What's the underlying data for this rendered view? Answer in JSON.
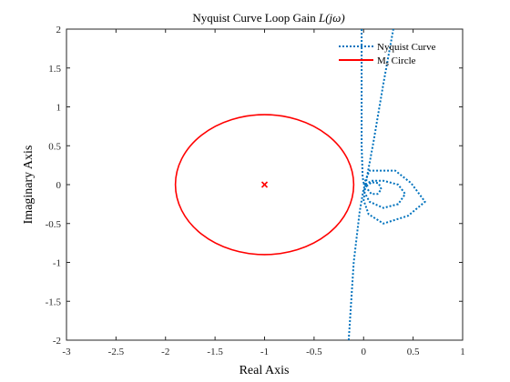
{
  "chart_data": {
    "type": "line",
    "title": "Nyquist Curve Loop Gain L(jω)",
    "title_parts": {
      "prefix": "Nyquist Curve Loop Gain ",
      "math": "L(jω)"
    },
    "xlabel": "Real Axis",
    "ylabel": "Imaginary Axis",
    "xlim": [
      -3,
      1
    ],
    "ylim": [
      -2,
      2
    ],
    "xticks": [
      -3,
      -2.5,
      -2,
      -1.5,
      -1,
      -0.5,
      0,
      0.5,
      1
    ],
    "xtick_labels": [
      "-3",
      "-2.5",
      "-2",
      "-1.5",
      "-1",
      "-0.5",
      "0",
      "0.5",
      "1"
    ],
    "yticks": [
      -2,
      -1.5,
      -1,
      -0.5,
      0,
      0.5,
      1,
      1.5,
      2
    ],
    "ytick_labels": [
      "-2",
      "-1.5",
      "-1",
      "-0.5",
      "0",
      "0.5",
      "1",
      "1.5",
      "2"
    ],
    "grid": false,
    "legend": {
      "placement": "top-right",
      "entries": [
        {
          "text": "Nyquist Curve",
          "color": "#0072BD",
          "style": "dotted"
        },
        {
          "text": "Ms Circle",
          "math_prefix": "M",
          "math_sub": "s",
          "rest": " Circle",
          "color": "#FF0000",
          "style": "solid"
        }
      ]
    },
    "marker": {
      "symbol": "x",
      "x": -1,
      "y": 0,
      "color": "#FF0000"
    },
    "series": [
      {
        "name": "Nyquist Curve",
        "color": "#0072BD",
        "style": "dotted",
        "paths": [
          {
            "x": [
              -0.02,
              -0.02,
              -0.02,
              -0.01,
              0.0
            ],
            "y": [
              2.0,
              1.0,
              0.5,
              0.1,
              0.02
            ]
          },
          {
            "x": [
              -0.15,
              -0.1,
              -0.04,
              0.0,
              0.02
            ],
            "y": [
              -2.0,
              -1.0,
              -0.35,
              -0.05,
              0.0
            ]
          },
          {
            "x": [
              0.02,
              0.1,
              0.2,
              0.3
            ],
            "y": [
              0.0,
              0.55,
              1.3,
              2.0
            ]
          },
          {
            "x": [
              0.0,
              0.06,
              0.32,
              0.48,
              0.62,
              0.45,
              0.2,
              0.05,
              0.0,
              0.02
            ],
            "y": [
              0.0,
              0.18,
              0.18,
              0.02,
              -0.22,
              -0.4,
              -0.5,
              -0.38,
              -0.2,
              0.0
            ]
          },
          {
            "x": [
              0.02,
              0.08,
              0.2,
              0.35,
              0.42,
              0.35,
              0.2,
              0.06,
              0.0,
              0.03
            ],
            "y": [
              0.0,
              0.05,
              0.05,
              0.0,
              -0.12,
              -0.25,
              -0.3,
              -0.22,
              -0.08,
              -0.02
            ]
          },
          {
            "x": [
              0.03,
              0.08,
              0.15,
              0.18,
              0.14,
              0.08,
              0.04
            ],
            "y": [
              -0.02,
              0.03,
              0.02,
              -0.06,
              -0.12,
              -0.12,
              -0.06
            ]
          }
        ]
      },
      {
        "name": "Ms Circle",
        "color": "#FF0000",
        "style": "solid",
        "circle": {
          "cx": -1,
          "cy": 0,
          "r": 0.9
        }
      }
    ]
  }
}
